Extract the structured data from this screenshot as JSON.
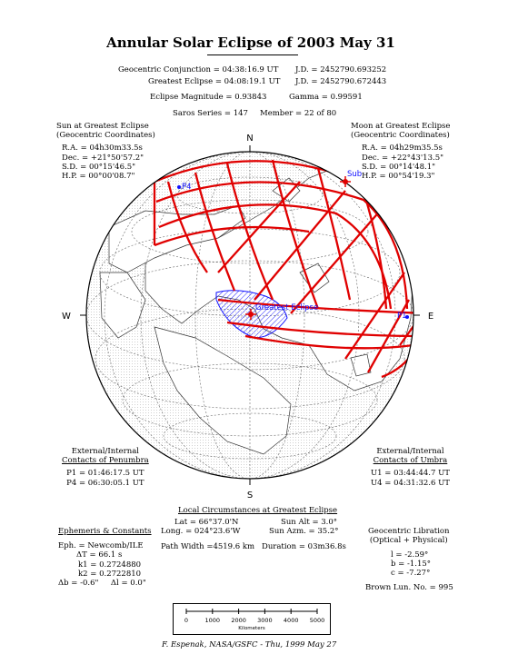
{
  "title": "Annular Solar Eclipse of 2003 May 31",
  "header": {
    "conjunction": "Geocentric Conjunction = 04:38:16.9 UT",
    "conjunction_jd": "J.D. = 2452790.693252",
    "greatest": "Greatest Eclipse = 04:08:19.1 UT",
    "greatest_jd": "J.D. = 2452790.672443",
    "magnitude": "Eclipse Magnitude = 0.93843",
    "gamma": "Gamma = 0.99591",
    "saros": "Saros Series = 147",
    "member": "Member = 22 of 80"
  },
  "sun": {
    "title": "Sun at Greatest Eclipse",
    "subtitle": "(Geocentric Coordinates)",
    "ra": "R.A. = 04h30m33.5s",
    "dec": "Dec. = +21°50'57.2\"",
    "sd": "S.D. = 00°15'46.5\"",
    "hp": "H.P. = 00°00'08.7\""
  },
  "moon": {
    "title": "Moon at Greatest Eclipse",
    "subtitle": "(Geocentric Coordinates)",
    "ra": "R.A. = 04h29m35.5s",
    "dec": "Dec. = +22°43'13.5\"",
    "sd": "S.D. = 00°14'48.1\"",
    "hp": "H.P. = 00°54'19.3\""
  },
  "penumbra": {
    "title1": "External/Internal",
    "title2": "Contacts of Penumbra",
    "p1": "P1 = 01:46:17.5 UT",
    "p4": "P4 = 06:30:05.1 UT"
  },
  "umbra": {
    "title1": "External/Internal",
    "title2": "Contacts of Umbra",
    "u1": "U1 = 03:44:44.7 UT",
    "u4": "U4 = 04:31:32.6 UT"
  },
  "local": {
    "title": "Local Circumstances at Greatest Eclipse",
    "lat": "Lat = 66°37.0'N",
    "long": "Long. = 024°23.6'W",
    "sun_alt": "Sun Alt = 3.0°",
    "sun_azm": "Sun Azm. = 35.2°",
    "path_width": "Path Width =4519.6 km",
    "duration": "Duration = 03m36.8s"
  },
  "ephemeris": {
    "title": "Ephemeris & Constants",
    "eph": "Eph. = Newcomb/ILE",
    "dt": "ΔT = 66.1 s",
    "k1": "k1 = 0.2724880",
    "k2": "k2 = 0.2722810",
    "db": "Δb = -0.6\"",
    "dl": "Δl = 0.0\""
  },
  "libration": {
    "title1": "Geocentric Libration",
    "title2": "(Optical + Physical)",
    "l": "l = -2.59°",
    "b": "b = -1.15°",
    "c": "c = -7.27°",
    "brown": "Brown Lun. No. = 995"
  },
  "map": {
    "north": "N",
    "south": "S",
    "east": "E",
    "west": "W",
    "label_p1": "P1",
    "label_p4": "P4",
    "label_sub": "Sub",
    "label_greatest": "Greatest Eclipse"
  },
  "scale": {
    "ticks": [
      "0",
      "1000",
      "2000",
      "3000",
      "4000",
      "5000"
    ],
    "unit": "Kilometers"
  },
  "credit": "F. Espenak, NASA/GSFC - Thu, 1999 May 27",
  "colors": {
    "path_red": "#e00000",
    "umbra_blue": "#1010ff",
    "land_grid": "#555555"
  }
}
